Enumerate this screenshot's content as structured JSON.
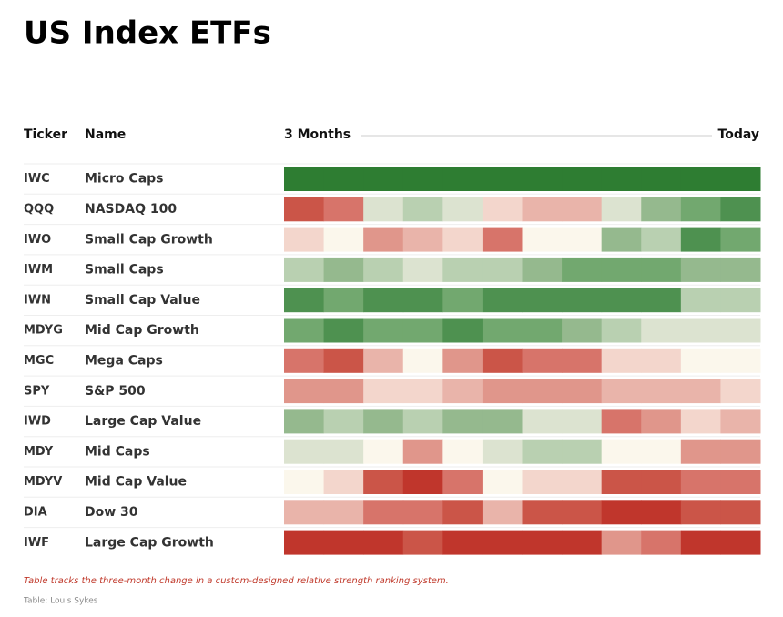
{
  "header": {
    "title": "US Index ETFs"
  },
  "table": {
    "columns": {
      "ticker": "Ticker",
      "name": "Name",
      "start": "3 Months",
      "end": "Today"
    },
    "rows": [
      {
        "ticker": "IWC",
        "name": "Micro Caps",
        "colors": [
          "#2e7d32",
          "#2e7d32",
          "#2e7d32",
          "#2e7d32",
          "#2e7d32",
          "#2e7d32",
          "#2e7d32",
          "#2e7d32",
          "#2e7d32",
          "#2e7d32",
          "#2e7d32",
          "#2e7d32"
        ]
      },
      {
        "ticker": "QQQ",
        "name": "NASDAQ 100",
        "colors": [
          "#cb5548",
          "#d7746a",
          "#dce3d0",
          "#b9d0b1",
          "#dce3d0",
          "#f3d6cc",
          "#e9b4aa",
          "#e9b4aa",
          "#dce3d0",
          "#95b98e",
          "#72a86f",
          "#4e9150"
        ]
      },
      {
        "ticker": "IWO",
        "name": "Small Cap Growth",
        "colors": [
          "#f3d6cc",
          "#fbf7ec",
          "#e0968b",
          "#e9b4aa",
          "#f3d6cc",
          "#d7746a",
          "#fbf7ec",
          "#fbf7ec",
          "#95b98e",
          "#b9d0b1",
          "#4e9150",
          "#72a86f"
        ]
      },
      {
        "ticker": "IWM",
        "name": "Small Caps",
        "colors": [
          "#b9d0b1",
          "#95b98e",
          "#b9d0b1",
          "#dce3d0",
          "#b9d0b1",
          "#b9d0b1",
          "#95b98e",
          "#72a86f",
          "#72a86f",
          "#72a86f",
          "#95b98e",
          "#95b98e"
        ]
      },
      {
        "ticker": "IWN",
        "name": "Small Cap Value",
        "colors": [
          "#4e9150",
          "#72a86f",
          "#4e9150",
          "#4e9150",
          "#72a86f",
          "#4e9150",
          "#4e9150",
          "#4e9150",
          "#4e9150",
          "#4e9150",
          "#b9d0b1",
          "#b9d0b1"
        ]
      },
      {
        "ticker": "MDYG",
        "name": "Mid Cap Growth",
        "colors": [
          "#72a86f",
          "#4e9150",
          "#72a86f",
          "#72a86f",
          "#4e9150",
          "#72a86f",
          "#72a86f",
          "#95b98e",
          "#b9d0b1",
          "#dce3d0",
          "#dce3d0",
          "#dce3d0"
        ]
      },
      {
        "ticker": "MGC",
        "name": "Mega Caps",
        "colors": [
          "#d7746a",
          "#cb5548",
          "#e9b4aa",
          "#fbf7ec",
          "#e0968b",
          "#cb5548",
          "#d7746a",
          "#d7746a",
          "#f3d6cc",
          "#f3d6cc",
          "#fbf7ec",
          "#fbf7ec"
        ]
      },
      {
        "ticker": "SPY",
        "name": "S&P 500",
        "colors": [
          "#e0968b",
          "#e0968b",
          "#f3d6cc",
          "#f3d6cc",
          "#e9b4aa",
          "#e0968b",
          "#e0968b",
          "#e0968b",
          "#e9b4aa",
          "#e9b4aa",
          "#e9b4aa",
          "#f3d6cc"
        ]
      },
      {
        "ticker": "IWD",
        "name": "Large Cap Value",
        "colors": [
          "#95b98e",
          "#b9d0b1",
          "#95b98e",
          "#b9d0b1",
          "#95b98e",
          "#95b98e",
          "#dce3d0",
          "#dce3d0",
          "#d7746a",
          "#e0968b",
          "#f3d6cc",
          "#e9b4aa"
        ]
      },
      {
        "ticker": "MDY",
        "name": "Mid Caps",
        "colors": [
          "#dce3d0",
          "#dce3d0",
          "#fbf7ec",
          "#e0968b",
          "#fbf7ec",
          "#dce3d0",
          "#b9d0b1",
          "#b9d0b1",
          "#fbf7ec",
          "#fbf7ec",
          "#e0968b",
          "#e0968b"
        ]
      },
      {
        "ticker": "MDYV",
        "name": "Mid Cap Value",
        "colors": [
          "#fbf7ec",
          "#f3d6cc",
          "#cb5548",
          "#c0362c",
          "#d7746a",
          "#fbf7ec",
          "#f3d6cc",
          "#f3d6cc",
          "#cb5548",
          "#cb5548",
          "#d7746a",
          "#d7746a"
        ]
      },
      {
        "ticker": "DIA",
        "name": "Dow 30",
        "colors": [
          "#e9b4aa",
          "#e9b4aa",
          "#d7746a",
          "#d7746a",
          "#cb5548",
          "#e9b4aa",
          "#cb5548",
          "#cb5548",
          "#c0362c",
          "#c0362c",
          "#cb5548",
          "#cb5548"
        ]
      },
      {
        "ticker": "IWF",
        "name": "Large Cap Growth",
        "colors": [
          "#c0362c",
          "#c0362c",
          "#c0362c",
          "#cb5548",
          "#c0362c",
          "#c0362c",
          "#c0362c",
          "#c0362c",
          "#e0968b",
          "#d7746a",
          "#c0362c",
          "#c0362c"
        ]
      }
    ]
  },
  "footer": {
    "note": "Table tracks the three-month change in a custom-designed relative strength ranking system.",
    "source": "Table: Louis Sykes"
  }
}
